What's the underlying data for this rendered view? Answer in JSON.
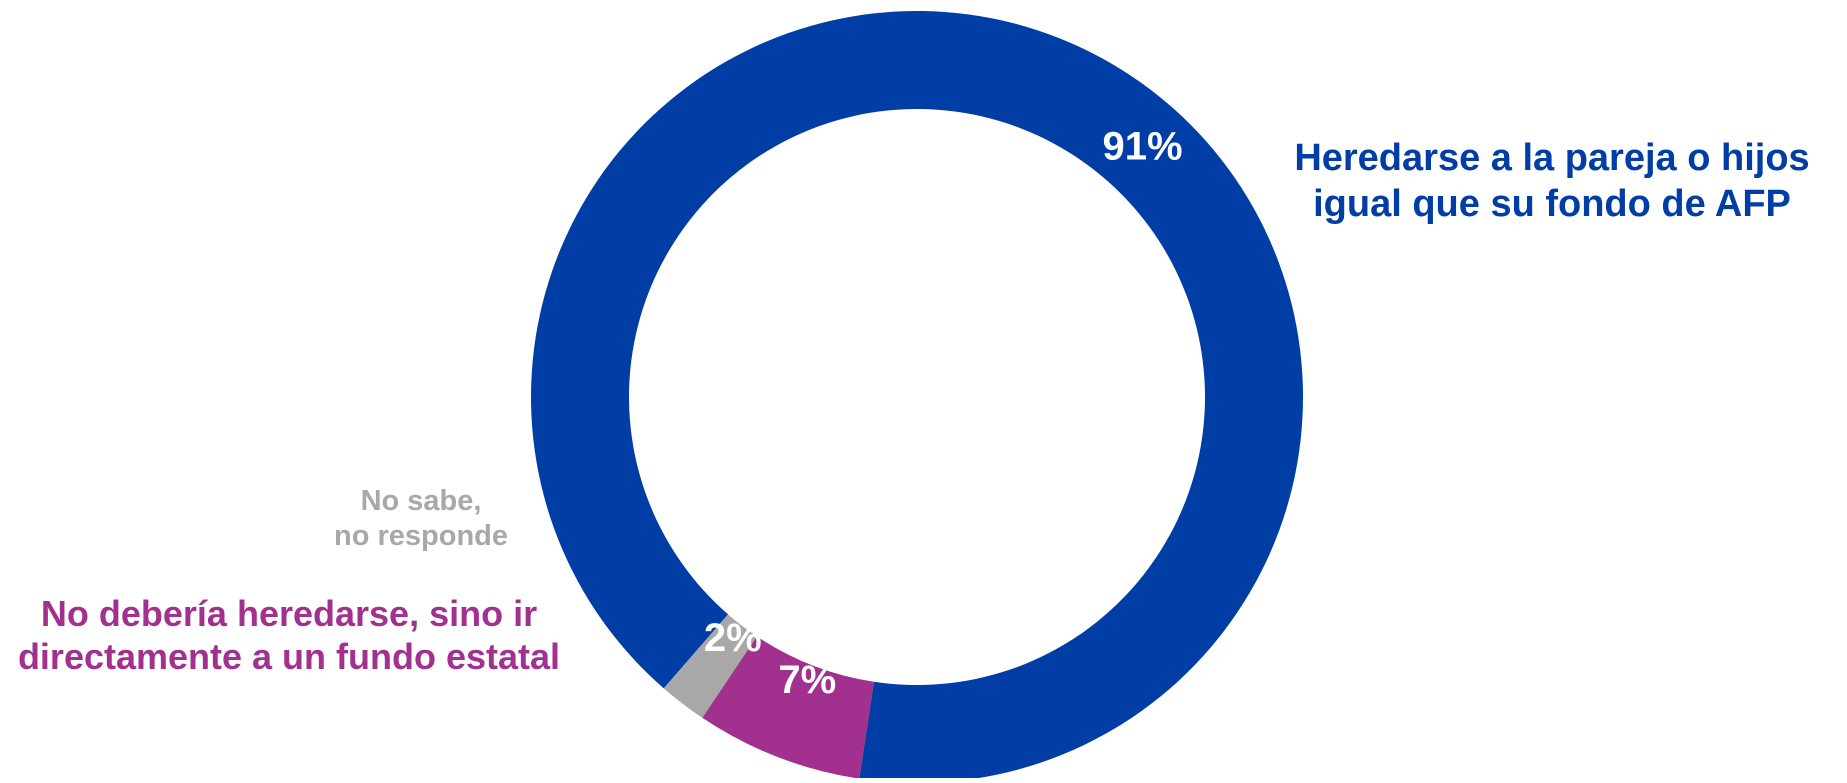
{
  "chart_data": {
    "type": "pie",
    "subtype": "donut",
    "slices": [
      {
        "label_lines": [
          "Heredarse a la pareja o hijos",
          "igual que su fondo de AFP"
        ],
        "value": 91,
        "value_label": "91%",
        "color": "#003DA5"
      },
      {
        "label_lines": [
          "No debería heredarse, sino ir",
          "directamente a un fundo estatal"
        ],
        "value": 7,
        "value_label": "7%",
        "color": "#A2308F"
      },
      {
        "label_lines": [
          "No sabe,",
          "no responde"
        ],
        "value": 2,
        "value_label": "2%",
        "color": "#A8A8A8"
      }
    ]
  }
}
